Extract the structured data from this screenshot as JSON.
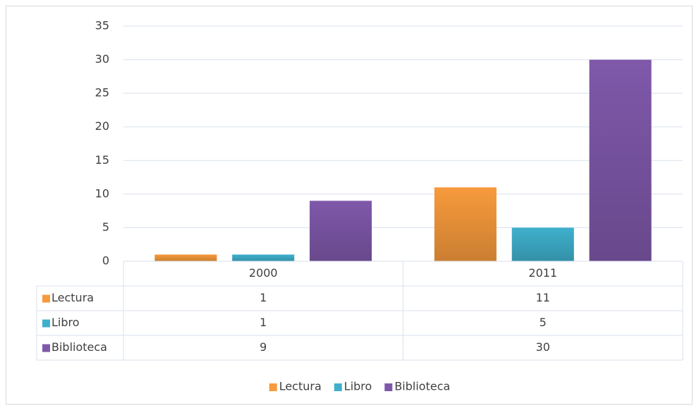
{
  "chart_data": {
    "type": "bar",
    "categories": [
      "2000",
      "2011"
    ],
    "series": [
      {
        "name": "Lectura",
        "color": "#f79a3c",
        "values": [
          1,
          11
        ]
      },
      {
        "name": "Libro",
        "color": "#3fb0cc",
        "values": [
          1,
          5
        ]
      },
      {
        "name": "Biblioteca",
        "color": "#7f58aa",
        "values": [
          9,
          30
        ]
      }
    ],
    "ylim": [
      0,
      35
    ],
    "yticks": [
      0,
      5,
      10,
      15,
      20,
      25,
      30,
      35
    ],
    "grid": true,
    "data_table": true,
    "legend": "bottom"
  }
}
